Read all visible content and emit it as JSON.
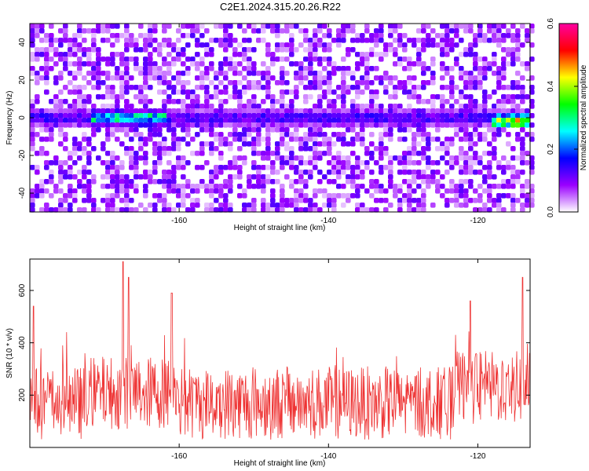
{
  "title": "C2E1.2024.315.20.26.R22",
  "chart_data": [
    {
      "type": "heatmap",
      "xlabel": "Height of straight line (km)",
      "ylabel": "Frequency (Hz)",
      "xlim": [
        -180,
        -113
      ],
      "ylim": [
        -50,
        50
      ],
      "x_ticks": [
        "-160",
        "-140",
        "-120"
      ],
      "y_ticks": [
        "40",
        "20",
        "0",
        "-20",
        "-40"
      ],
      "colorbar": {
        "label": "Normalized spectral amplitude",
        "range": [
          0.0,
          0.6
        ],
        "ticks": [
          "0.0",
          "0.2",
          "0.4",
          "0.6"
        ],
        "colors": [
          "#ffffff",
          "#9a00ff",
          "#0000ff",
          "#00ffff",
          "#00ff00",
          "#ffff00",
          "#ff0000",
          "#ff00a0"
        ]
      },
      "features": [
        {
          "x_range": [
            -180,
            -113
          ],
          "y": 0,
          "amplitude": 0.2
        },
        {
          "x_range": [
            -172,
            -162
          ],
          "y": 0,
          "amplitude": 0.4
        },
        {
          "x_range": [
            -118,
            -113
          ],
          "y": -2,
          "amplitude": 0.55
        }
      ]
    },
    {
      "type": "line",
      "xlabel": "Height of straight line (km)",
      "ylabel": "SNR (10 * v/v)",
      "xlim": [
        -180,
        -113
      ],
      "ylim": [
        0,
        720
      ],
      "x_ticks": [
        "-160",
        "-140",
        "-120"
      ],
      "y_ticks": [
        "600",
        "400",
        "200"
      ],
      "color": "#ee3333",
      "peaks": [
        {
          "x": -179.5,
          "y": 540
        },
        {
          "x": -167.5,
          "y": 710
        },
        {
          "x": -166.8,
          "y": 650
        },
        {
          "x": -161,
          "y": 590
        },
        {
          "x": -121,
          "y": 560
        },
        {
          "x": -114,
          "y": 650
        }
      ]
    }
  ]
}
